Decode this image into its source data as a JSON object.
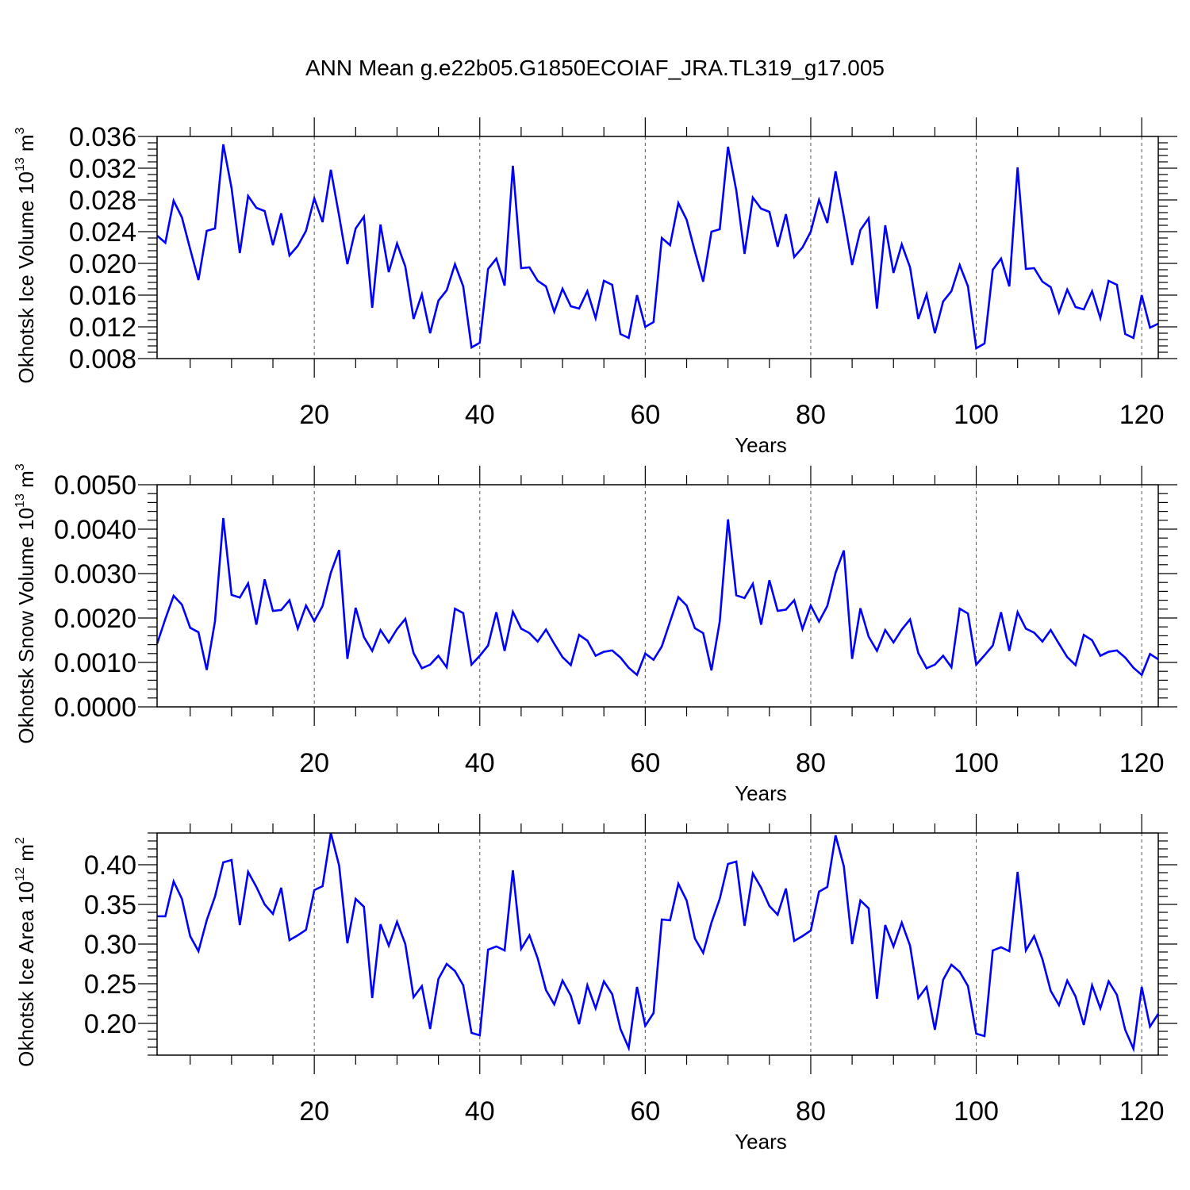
{
  "figure": {
    "title": "ANN Mean g.e22b05.G1850ECOIAF_JRA.TL319_g17.005",
    "line_color": "#0000ff"
  },
  "chart_data": [
    {
      "type": "line",
      "name": "ice-volume",
      "xlabel": "Years",
      "ylabel": "Okhotsk Ice Volume 10",
      "ylabel_exp": "13",
      "ylabel_unit": " m",
      "ylabel_unit_exp": "3",
      "xlim": [
        1,
        122
      ],
      "ylim": [
        0.008,
        0.036
      ],
      "x_ticks": [
        20,
        40,
        60,
        80,
        100,
        120
      ],
      "x_tick_labels": [
        "20",
        "40",
        "60",
        "80",
        "100",
        "120"
      ],
      "y_ticks": [
        0.008,
        0.012,
        0.016,
        0.02,
        0.024,
        0.028,
        0.032,
        0.036
      ],
      "y_tick_labels": [
        "0.008",
        "0.012",
        "0.016",
        "0.020",
        "0.024",
        "0.028",
        "0.032",
        "0.036"
      ],
      "grid_x": [
        20,
        40,
        60,
        80,
        100,
        120
      ],
      "x_start": 1,
      "values": [
        0.0235,
        0.0226,
        0.0279,
        0.0258,
        0.0218,
        0.0179,
        0.0241,
        0.0244,
        0.035,
        0.0295,
        0.0213,
        0.0285,
        0.027,
        0.0266,
        0.0223,
        0.0263,
        0.021,
        0.0222,
        0.0241,
        0.0282,
        0.0252,
        0.0318,
        0.026,
        0.0199,
        0.0244,
        0.0259,
        0.0144,
        0.0249,
        0.0189,
        0.0225,
        0.0196,
        0.013,
        0.0161,
        0.0112,
        0.0153,
        0.0166,
        0.0199,
        0.0171,
        0.0094,
        0.01,
        0.0193,
        0.0206,
        0.0172,
        0.0323,
        0.0194,
        0.0195,
        0.0178,
        0.0171,
        0.0139,
        0.0168,
        0.0146,
        0.0143,
        0.0165,
        0.0131,
        0.0178,
        0.0173,
        0.0111,
        0.0106,
        0.016,
        0.012,
        0.0126,
        0.0232,
        0.0223,
        0.0276,
        0.0255,
        0.0215,
        0.0177,
        0.024,
        0.0243,
        0.0347,
        0.0292,
        0.0212,
        0.0283,
        0.0269,
        0.0265,
        0.0221,
        0.0262,
        0.0208,
        0.022,
        0.024,
        0.028,
        0.0251,
        0.0316,
        0.0259,
        0.0198,
        0.0242,
        0.0257,
        0.0143,
        0.0248,
        0.0188,
        0.0224,
        0.0195,
        0.013,
        0.0161,
        0.0112,
        0.0152,
        0.0165,
        0.0198,
        0.0171,
        0.0093,
        0.0099,
        0.0192,
        0.0206,
        0.0171,
        0.0321,
        0.0193,
        0.0194,
        0.0177,
        0.017,
        0.0138,
        0.0167,
        0.0145,
        0.0142,
        0.0165,
        0.0131,
        0.0178,
        0.0173,
        0.0111,
        0.0106,
        0.016,
        0.0119,
        0.0124
      ]
    },
    {
      "type": "line",
      "name": "snow-volume",
      "xlabel": "Years",
      "ylabel": "Okhotsk Snow Volume 10",
      "ylabel_exp": "13",
      "ylabel_unit": " m",
      "ylabel_unit_exp": "3",
      "xlim": [
        1,
        122
      ],
      "ylim": [
        0.0,
        0.005
      ],
      "x_ticks": [
        20,
        40,
        60,
        80,
        100,
        120
      ],
      "x_tick_labels": [
        "20",
        "40",
        "60",
        "80",
        "100",
        "120"
      ],
      "y_ticks": [
        0.0,
        0.001,
        0.002,
        0.003,
        0.004,
        0.005
      ],
      "y_tick_labels": [
        "0.0000",
        "0.0010",
        "0.0020",
        "0.0030",
        "0.0040",
        "0.0050"
      ],
      "grid_x": [
        20,
        40,
        60,
        80,
        100,
        120
      ],
      "x_start": 1,
      "values": [
        0.00142,
        0.00198,
        0.0025,
        0.0023,
        0.00178,
        0.00168,
        0.00083,
        0.00193,
        0.00425,
        0.00252,
        0.00246,
        0.00278,
        0.00185,
        0.00287,
        0.00216,
        0.00218,
        0.0024,
        0.00176,
        0.00228,
        0.00193,
        0.00227,
        0.00302,
        0.00353,
        0.00108,
        0.00223,
        0.00157,
        0.00126,
        0.00173,
        0.00145,
        0.00175,
        0.00198,
        0.00121,
        0.00087,
        0.00095,
        0.00115,
        0.00089,
        0.00221,
        0.00211,
        0.00095,
        0.00115,
        0.00138,
        0.00213,
        0.00126,
        0.00214,
        0.00176,
        0.00166,
        0.00147,
        0.00174,
        0.00142,
        0.00112,
        0.00094,
        0.00162,
        0.00149,
        0.00115,
        0.00124,
        0.00127,
        0.00111,
        0.00088,
        0.00072,
        0.0012,
        0.00106,
        0.00136,
        0.00192,
        0.00247,
        0.00228,
        0.00177,
        0.00166,
        0.00082,
        0.00192,
        0.00422,
        0.00251,
        0.00245,
        0.00277,
        0.00185,
        0.00285,
        0.00216,
        0.00219,
        0.0024,
        0.00175,
        0.00228,
        0.00192,
        0.00227,
        0.00302,
        0.00352,
        0.00108,
        0.00222,
        0.00158,
        0.00126,
        0.00173,
        0.00145,
        0.00174,
        0.00197,
        0.00121,
        0.00087,
        0.00095,
        0.00115,
        0.00089,
        0.00221,
        0.0021,
        0.00095,
        0.00116,
        0.00138,
        0.00213,
        0.00126,
        0.00213,
        0.00176,
        0.00167,
        0.00147,
        0.00173,
        0.00142,
        0.00112,
        0.00094,
        0.00162,
        0.0015,
        0.00115,
        0.00124,
        0.00127,
        0.00111,
        0.00088,
        0.00072,
        0.00119,
        0.00107
      ]
    },
    {
      "type": "line",
      "name": "ice-area",
      "xlabel": "Years",
      "ylabel": "Okhotsk Ice Area 10",
      "ylabel_exp": "12",
      "ylabel_unit": " m",
      "ylabel_unit_exp": "2",
      "xlim": [
        1,
        122
      ],
      "ylim": [
        0.16,
        0.44
      ],
      "x_ticks": [
        20,
        40,
        60,
        80,
        100,
        120
      ],
      "x_tick_labels": [
        "20",
        "40",
        "60",
        "80",
        "100",
        "120"
      ],
      "y_ticks": [
        0.2,
        0.25,
        0.3,
        0.35,
        0.4
      ],
      "y_tick_labels": [
        "0.20",
        "0.25",
        "0.30",
        "0.35",
        "0.40"
      ],
      "grid_x": [
        20,
        40,
        60,
        80,
        100,
        120
      ],
      "x_start": 1,
      "values": [
        0.335,
        0.335,
        0.379,
        0.357,
        0.31,
        0.291,
        0.33,
        0.36,
        0.403,
        0.406,
        0.324,
        0.391,
        0.372,
        0.35,
        0.338,
        0.371,
        0.305,
        0.311,
        0.318,
        0.368,
        0.373,
        0.44,
        0.399,
        0.301,
        0.357,
        0.347,
        0.232,
        0.325,
        0.298,
        0.328,
        0.3,
        0.233,
        0.247,
        0.193,
        0.256,
        0.275,
        0.266,
        0.248,
        0.188,
        0.185,
        0.293,
        0.297,
        0.292,
        0.393,
        0.294,
        0.311,
        0.282,
        0.242,
        0.224,
        0.254,
        0.235,
        0.199,
        0.248,
        0.219,
        0.253,
        0.237,
        0.193,
        0.169,
        0.246,
        0.197,
        0.213,
        0.331,
        0.33,
        0.376,
        0.355,
        0.307,
        0.289,
        0.327,
        0.357,
        0.401,
        0.404,
        0.323,
        0.389,
        0.371,
        0.348,
        0.337,
        0.37,
        0.304,
        0.31,
        0.317,
        0.366,
        0.372,
        0.437,
        0.398,
        0.3,
        0.355,
        0.345,
        0.231,
        0.324,
        0.297,
        0.327,
        0.298,
        0.232,
        0.246,
        0.192,
        0.255,
        0.274,
        0.265,
        0.247,
        0.187,
        0.184,
        0.292,
        0.296,
        0.291,
        0.391,
        0.292,
        0.31,
        0.281,
        0.241,
        0.223,
        0.254,
        0.234,
        0.198,
        0.248,
        0.219,
        0.253,
        0.236,
        0.192,
        0.168,
        0.246,
        0.196,
        0.212
      ]
    }
  ]
}
